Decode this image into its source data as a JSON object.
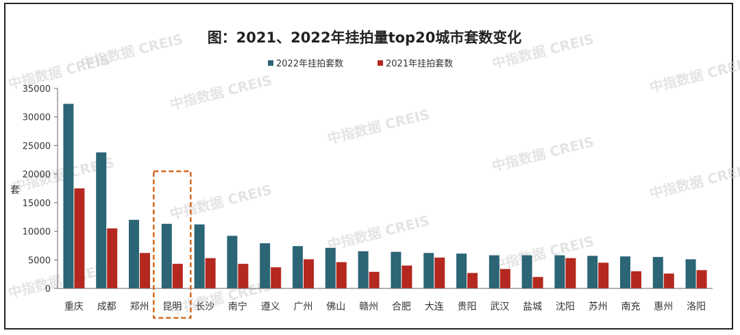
{
  "chart_data": {
    "type": "bar",
    "title": "图：2021、2022年挂拍量top20城市套数变化",
    "ylabel": "套",
    "xlabel": "",
    "ylim": [
      0,
      35000
    ],
    "yticks": [
      0,
      5000,
      10000,
      15000,
      20000,
      25000,
      30000,
      35000
    ],
    "categories": [
      "重庆",
      "成都",
      "郑州",
      "昆明",
      "长沙",
      "南宁",
      "遵义",
      "广州",
      "佛山",
      "赣州",
      "合肥",
      "大连",
      "贵阳",
      "武汉",
      "盐城",
      "沈阳",
      "苏州",
      "南充",
      "惠州",
      "洛阳"
    ],
    "series": [
      {
        "name": "2022年挂拍套数",
        "color": "#2b6576",
        "values": [
          32300,
          23800,
          12000,
          11300,
          11200,
          9200,
          7900,
          7400,
          7100,
          6500,
          6400,
          6200,
          6100,
          5800,
          5800,
          5800,
          5700,
          5600,
          5500,
          5100
        ]
      },
      {
        "name": "2021年挂拍套数",
        "color": "#b5281f",
        "values": [
          17500,
          10500,
          6200,
          4300,
          5300,
          4300,
          3700,
          5100,
          4600,
          2900,
          4000,
          5400,
          2700,
          3400,
          2000,
          5300,
          4500,
          3000,
          2600,
          3200
        ]
      }
    ],
    "highlight": {
      "category": "昆明",
      "style": "dashed-box",
      "color": "#d2691e"
    }
  },
  "watermark": {
    "text": "中指数据 CREIS",
    "color": "#cfcfcf"
  }
}
